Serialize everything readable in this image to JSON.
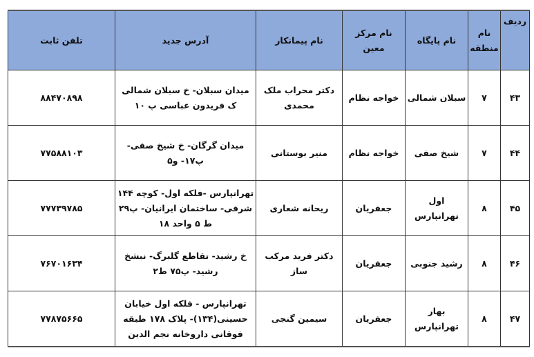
{
  "header": {
    "row_no": "ردیف",
    "region": "نام منطقه",
    "base": "نام پایگاه",
    "center": "نام مرکز معین",
    "contractor": "نام پیمانکار",
    "address": "آدرس جدید",
    "phone": "تلفن ثابت"
  },
  "header_color": "#8eaadb",
  "rows": [
    {
      "row_no": "۴۳",
      "region": "۷",
      "base": "سبلان شمالی",
      "center": "خواجه نظام",
      "contractor": "دکتر محراب ملک محمدی",
      "address": "میدان سبلان- خ سبلان شمالی ک فریدون عباسی پ ۱۰",
      "phone": "۸۸۴۷۰۸۹۸"
    },
    {
      "row_no": "۴۴",
      "region": "۷",
      "base": "شیخ صفی",
      "center": "خواجه نظام",
      "contractor": "منیر بوستانی",
      "address": "میدان گرگان- خ شیخ صفی- پ۱۷- و۵",
      "phone": "۷۷۵۸۸۱۰۳"
    },
    {
      "row_no": "۴۵",
      "region": "۸",
      "base": "اول تهرانپارس",
      "center": "جعفریان",
      "contractor": "ریحانه شعاری",
      "address": "تهرانپارس -فلکه اول- کوچه ۱۴۴ شرقی- ساختمان ایرانیان- پ۲۹ ط ۵ واحد ۱۸",
      "phone": "۷۷۷۳۹۷۸۵"
    },
    {
      "row_no": "۴۶",
      "region": "۸",
      "base": "رشید جنوبی",
      "center": "جعفریان",
      "contractor": "دکتر فرید مرکب ساز",
      "address": "خ رشید- تقاطع گلبرگ- نبشخ رشید- پ۷۵ ط۲",
      "phone": "۷۶۷۰۱۶۳۴"
    },
    {
      "row_no": "۴۷",
      "region": "۸",
      "base": "بهار تهرانپارس",
      "center": "جعفریان",
      "contractor": "سیمین گنجی",
      "address": "تهرانپارس - فلکه اول خیابان حسینی(۱۳۴)- پلاک ۱۷۸ طبقه فوقانی داروخانه نجم الدین",
      "phone": "۷۷۸۷۵۶۶۵"
    }
  ]
}
